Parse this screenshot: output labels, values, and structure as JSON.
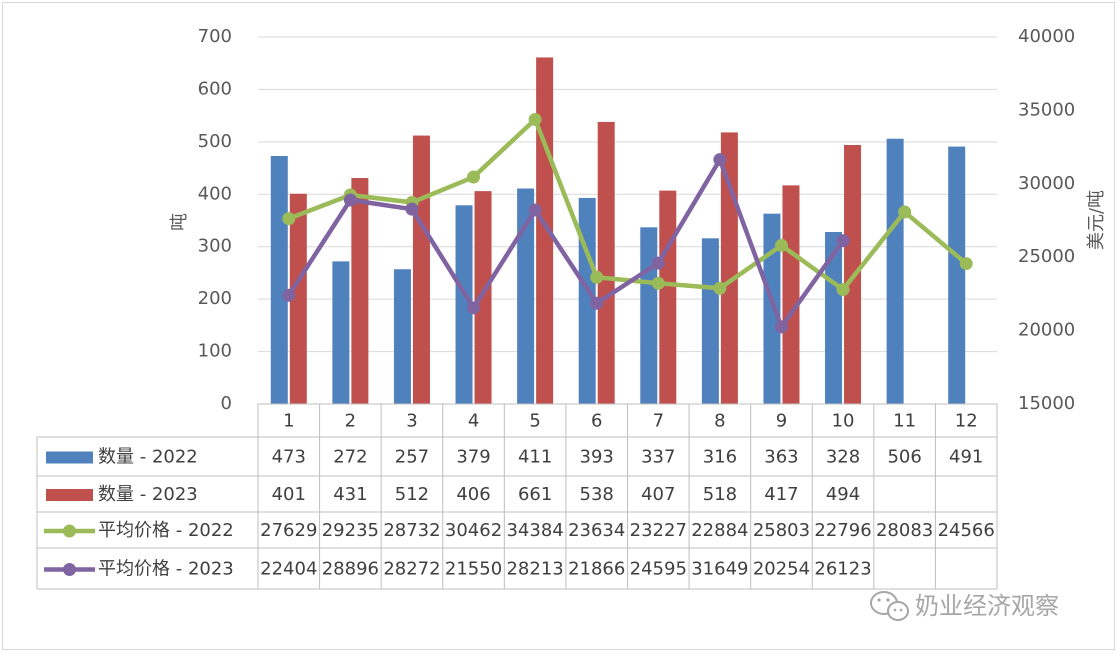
{
  "chart_data": {
    "type": "bar",
    "categories": [
      "1",
      "2",
      "3",
      "4",
      "5",
      "6",
      "7",
      "8",
      "9",
      "10",
      "11",
      "12"
    ],
    "series": [
      {
        "name": "数量 - 2022",
        "kind": "bar",
        "axis": "left",
        "color": "#4f81bd",
        "values": [
          473,
          272,
          257,
          379,
          411,
          393,
          337,
          316,
          363,
          328,
          506,
          491
        ]
      },
      {
        "name": "数量 - 2023",
        "kind": "bar",
        "axis": "left",
        "color": "#c0504d",
        "values": [
          401,
          431,
          512,
          406,
          661,
          538,
          407,
          518,
          417,
          494,
          null,
          null
        ]
      },
      {
        "name": "平均价格 - 2022",
        "kind": "line",
        "axis": "right",
        "color": "#9bbb59",
        "values": [
          27629,
          29235,
          28732,
          30462,
          34384,
          23634,
          23227,
          22884,
          25803,
          22796,
          28083,
          24566
        ]
      },
      {
        "name": "平均价格 - 2023",
        "kind": "line",
        "axis": "right",
        "color": "#8064a2",
        "values": [
          22404,
          28896,
          28272,
          21550,
          28213,
          21866,
          24595,
          31649,
          20254,
          26123,
          null,
          null
        ]
      }
    ],
    "ylabel": "吨",
    "ylabel_right": "美元/吨",
    "ylim": [
      0,
      700
    ],
    "yticks": [
      "0",
      "100",
      "200",
      "300",
      "400",
      "500",
      "600",
      "700"
    ],
    "ylim_right": [
      15000,
      40000
    ],
    "yticks_right": [
      "15000",
      "20000",
      "25000",
      "30000",
      "35000",
      "40000"
    ],
    "grid": true,
    "legend": "data-table"
  },
  "watermark": {
    "text": "奶业经济观察",
    "icon": "wechat-icon"
  }
}
